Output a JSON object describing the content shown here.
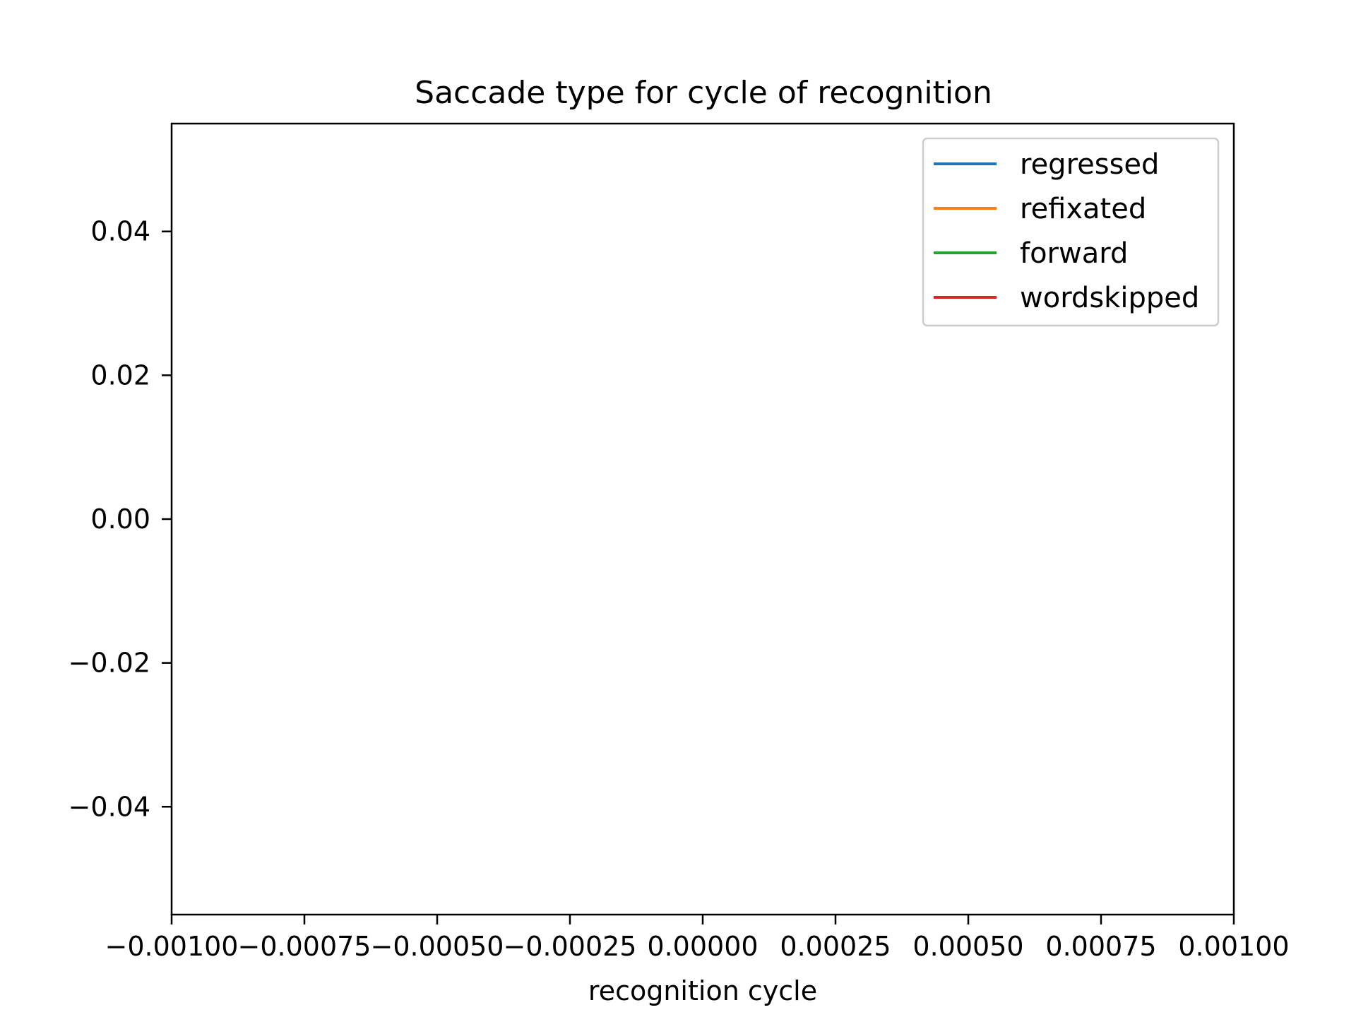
{
  "chart_data": {
    "type": "line",
    "title": "Saccade type for cycle of recognition",
    "xlabel": "recognition cycle",
    "ylabel": "",
    "xlim": [
      -0.001,
      0.001
    ],
    "ylim": [
      -0.055,
      0.055
    ],
    "x_ticks": [
      -0.001,
      -0.00075,
      -0.0005,
      -0.00025,
      0.0,
      0.00025,
      0.0005,
      0.00075,
      0.001
    ],
    "x_tick_labels": [
      "−0.00100",
      "−0.00075",
      "−0.00050",
      "−0.00025",
      "0.00000",
      "0.00025",
      "0.00050",
      "0.00075",
      "0.00100"
    ],
    "y_ticks": [
      0.04,
      0.02,
      0.0,
      -0.02,
      -0.04
    ],
    "y_tick_labels": [
      "0.04",
      "0.02",
      "0.00",
      "−0.02",
      "−0.04"
    ],
    "grid": false,
    "legend_position": "top-right",
    "series": [
      {
        "name": "regressed",
        "color": "#1f77b4",
        "x": [],
        "y": []
      },
      {
        "name": "refixated",
        "color": "#ff7f0e",
        "x": [],
        "y": []
      },
      {
        "name": "forward",
        "color": "#2ca02c",
        "x": [],
        "y": []
      },
      {
        "name": "wordskipped",
        "color": "#d62728",
        "x": [],
        "y": []
      }
    ]
  }
}
